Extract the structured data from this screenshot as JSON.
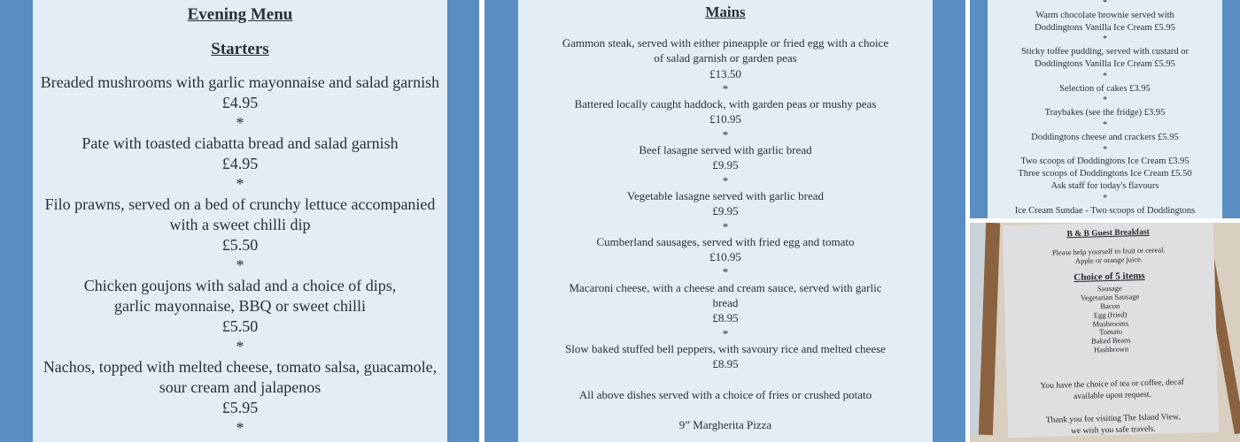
{
  "evening_menu": {
    "title": "Evening Menu",
    "section": "Starters",
    "lines": [
      "Breaded mushrooms with garlic mayonnaise and salad garnish",
      "£4.95",
      "*",
      "Pate with toasted ciabatta bread and salad garnish",
      "£4.95",
      "*",
      "Filo prawns, served on a bed of crunchy lettuce accompanied",
      "with a sweet chilli dip",
      "£5.50",
      "*",
      "Chicken goujons with salad and a choice of dips,",
      "garlic mayonnaise, BBQ or sweet chilli",
      "£5.50",
      "*",
      "Nachos, topped with melted cheese, tomato salsa, guacamole,",
      "sour cream and jalapenos",
      "£5.95",
      "*"
    ]
  },
  "mains_menu": {
    "title": "Mains",
    "lines": [
      "Gammon steak, served with either pineapple or fried egg with a choice",
      "of salad garnish or garden peas",
      "£13.50",
      "*",
      "Battered locally caught haddock, with garden peas or mushy peas",
      "£10.95",
      "*",
      "Beef lasagne served with garlic bread",
      "£9.95",
      "*",
      "Vegetable lasagne served with garlic bread",
      "£9.95",
      "*",
      "Cumberland sausages, served with fried egg and tomato",
      "£10.95",
      "*",
      "Macaroni cheese, with a cheese and cream sauce, served with garlic",
      "bread",
      "£8.95",
      "*",
      "Slow baked stuffed bell peppers, with savoury rice and melted cheese",
      "£8.95",
      "",
      "All above dishes served with a choice of fries or crushed potato",
      "",
      "9” Margherita Pizza"
    ]
  },
  "desserts_menu": {
    "lines": [
      "*",
      "Warm chocolate brownie served with",
      "Doddingtons Vanilla Ice Cream £5.95",
      "*",
      "Sticky toffee pudding, served with custard or",
      "Doddingtons Vanilla Ice Cream £5.95",
      "*",
      "Selection of cakes £3.95",
      "*",
      "Traybakes (see the fridge) £3.95",
      "*",
      "Doddingtons cheese and crackers £5.95",
      "*",
      "Two scoops of Doddingtons Ice Cream £3.95",
      "Three scoops of Doddingtons Ice Cream £5.50",
      "Ask staff for today's flavours",
      "*",
      "Ice Cream Sundae - Two scoops of Doddingtons"
    ]
  },
  "breakfast_menu": {
    "title": "B & B Guest Breakfast",
    "intro": [
      "Please help yourself to fruit or cereal.",
      "Apple or orange juice."
    ],
    "subtitle": "Choice of 5 items",
    "items": [
      "Sausage",
      "Vegetarian Sausage",
      "Bacon",
      "Egg (fried)",
      "Mushrooms",
      "Tomato",
      "Baked Beans",
      "Hashbrown"
    ],
    "footer": [
      "You have the choice of tea or coffee, decaf",
      "available upon request.",
      "",
      "Thank you for visiting The Island View,",
      "we wish you safe travels."
    ]
  },
  "colors": {
    "border_blue": "#5a8ec3",
    "sheet": "#e3edf5",
    "frame": "#8a6240"
  }
}
